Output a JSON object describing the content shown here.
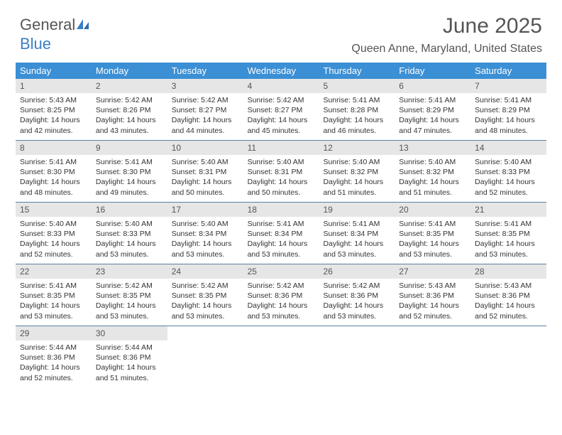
{
  "logo": {
    "text_gray": "General",
    "text_blue": "Blue"
  },
  "title": "June 2025",
  "location": "Queen Anne, Maryland, United States",
  "colors": {
    "header_bg": "#3b8fd4",
    "header_text": "#ffffff",
    "daynum_bg": "#e6e6e6",
    "week_border": "#5b7fa0",
    "logo_blue": "#3b7fc4"
  },
  "weekdays": [
    "Sunday",
    "Monday",
    "Tuesday",
    "Wednesday",
    "Thursday",
    "Friday",
    "Saturday"
  ],
  "weeks": [
    [
      {
        "n": "1",
        "sr": "Sunrise: 5:43 AM",
        "ss": "Sunset: 8:25 PM",
        "d1": "Daylight: 14 hours",
        "d2": "and 42 minutes."
      },
      {
        "n": "2",
        "sr": "Sunrise: 5:42 AM",
        "ss": "Sunset: 8:26 PM",
        "d1": "Daylight: 14 hours",
        "d2": "and 43 minutes."
      },
      {
        "n": "3",
        "sr": "Sunrise: 5:42 AM",
        "ss": "Sunset: 8:27 PM",
        "d1": "Daylight: 14 hours",
        "d2": "and 44 minutes."
      },
      {
        "n": "4",
        "sr": "Sunrise: 5:42 AM",
        "ss": "Sunset: 8:27 PM",
        "d1": "Daylight: 14 hours",
        "d2": "and 45 minutes."
      },
      {
        "n": "5",
        "sr": "Sunrise: 5:41 AM",
        "ss": "Sunset: 8:28 PM",
        "d1": "Daylight: 14 hours",
        "d2": "and 46 minutes."
      },
      {
        "n": "6",
        "sr": "Sunrise: 5:41 AM",
        "ss": "Sunset: 8:29 PM",
        "d1": "Daylight: 14 hours",
        "d2": "and 47 minutes."
      },
      {
        "n": "7",
        "sr": "Sunrise: 5:41 AM",
        "ss": "Sunset: 8:29 PM",
        "d1": "Daylight: 14 hours",
        "d2": "and 48 minutes."
      }
    ],
    [
      {
        "n": "8",
        "sr": "Sunrise: 5:41 AM",
        "ss": "Sunset: 8:30 PM",
        "d1": "Daylight: 14 hours",
        "d2": "and 48 minutes."
      },
      {
        "n": "9",
        "sr": "Sunrise: 5:41 AM",
        "ss": "Sunset: 8:30 PM",
        "d1": "Daylight: 14 hours",
        "d2": "and 49 minutes."
      },
      {
        "n": "10",
        "sr": "Sunrise: 5:40 AM",
        "ss": "Sunset: 8:31 PM",
        "d1": "Daylight: 14 hours",
        "d2": "and 50 minutes."
      },
      {
        "n": "11",
        "sr": "Sunrise: 5:40 AM",
        "ss": "Sunset: 8:31 PM",
        "d1": "Daylight: 14 hours",
        "d2": "and 50 minutes."
      },
      {
        "n": "12",
        "sr": "Sunrise: 5:40 AM",
        "ss": "Sunset: 8:32 PM",
        "d1": "Daylight: 14 hours",
        "d2": "and 51 minutes."
      },
      {
        "n": "13",
        "sr": "Sunrise: 5:40 AM",
        "ss": "Sunset: 8:32 PM",
        "d1": "Daylight: 14 hours",
        "d2": "and 51 minutes."
      },
      {
        "n": "14",
        "sr": "Sunrise: 5:40 AM",
        "ss": "Sunset: 8:33 PM",
        "d1": "Daylight: 14 hours",
        "d2": "and 52 minutes."
      }
    ],
    [
      {
        "n": "15",
        "sr": "Sunrise: 5:40 AM",
        "ss": "Sunset: 8:33 PM",
        "d1": "Daylight: 14 hours",
        "d2": "and 52 minutes."
      },
      {
        "n": "16",
        "sr": "Sunrise: 5:40 AM",
        "ss": "Sunset: 8:33 PM",
        "d1": "Daylight: 14 hours",
        "d2": "and 53 minutes."
      },
      {
        "n": "17",
        "sr": "Sunrise: 5:40 AM",
        "ss": "Sunset: 8:34 PM",
        "d1": "Daylight: 14 hours",
        "d2": "and 53 minutes."
      },
      {
        "n": "18",
        "sr": "Sunrise: 5:41 AM",
        "ss": "Sunset: 8:34 PM",
        "d1": "Daylight: 14 hours",
        "d2": "and 53 minutes."
      },
      {
        "n": "19",
        "sr": "Sunrise: 5:41 AM",
        "ss": "Sunset: 8:34 PM",
        "d1": "Daylight: 14 hours",
        "d2": "and 53 minutes."
      },
      {
        "n": "20",
        "sr": "Sunrise: 5:41 AM",
        "ss": "Sunset: 8:35 PM",
        "d1": "Daylight: 14 hours",
        "d2": "and 53 minutes."
      },
      {
        "n": "21",
        "sr": "Sunrise: 5:41 AM",
        "ss": "Sunset: 8:35 PM",
        "d1": "Daylight: 14 hours",
        "d2": "and 53 minutes."
      }
    ],
    [
      {
        "n": "22",
        "sr": "Sunrise: 5:41 AM",
        "ss": "Sunset: 8:35 PM",
        "d1": "Daylight: 14 hours",
        "d2": "and 53 minutes."
      },
      {
        "n": "23",
        "sr": "Sunrise: 5:42 AM",
        "ss": "Sunset: 8:35 PM",
        "d1": "Daylight: 14 hours",
        "d2": "and 53 minutes."
      },
      {
        "n": "24",
        "sr": "Sunrise: 5:42 AM",
        "ss": "Sunset: 8:35 PM",
        "d1": "Daylight: 14 hours",
        "d2": "and 53 minutes."
      },
      {
        "n": "25",
        "sr": "Sunrise: 5:42 AM",
        "ss": "Sunset: 8:36 PM",
        "d1": "Daylight: 14 hours",
        "d2": "and 53 minutes."
      },
      {
        "n": "26",
        "sr": "Sunrise: 5:42 AM",
        "ss": "Sunset: 8:36 PM",
        "d1": "Daylight: 14 hours",
        "d2": "and 53 minutes."
      },
      {
        "n": "27",
        "sr": "Sunrise: 5:43 AM",
        "ss": "Sunset: 8:36 PM",
        "d1": "Daylight: 14 hours",
        "d2": "and 52 minutes."
      },
      {
        "n": "28",
        "sr": "Sunrise: 5:43 AM",
        "ss": "Sunset: 8:36 PM",
        "d1": "Daylight: 14 hours",
        "d2": "and 52 minutes."
      }
    ],
    [
      {
        "n": "29",
        "sr": "Sunrise: 5:44 AM",
        "ss": "Sunset: 8:36 PM",
        "d1": "Daylight: 14 hours",
        "d2": "and 52 minutes."
      },
      {
        "n": "30",
        "sr": "Sunrise: 5:44 AM",
        "ss": "Sunset: 8:36 PM",
        "d1": "Daylight: 14 hours",
        "d2": "and 51 minutes."
      },
      {
        "empty": true
      },
      {
        "empty": true
      },
      {
        "empty": true
      },
      {
        "empty": true
      },
      {
        "empty": true
      }
    ]
  ]
}
